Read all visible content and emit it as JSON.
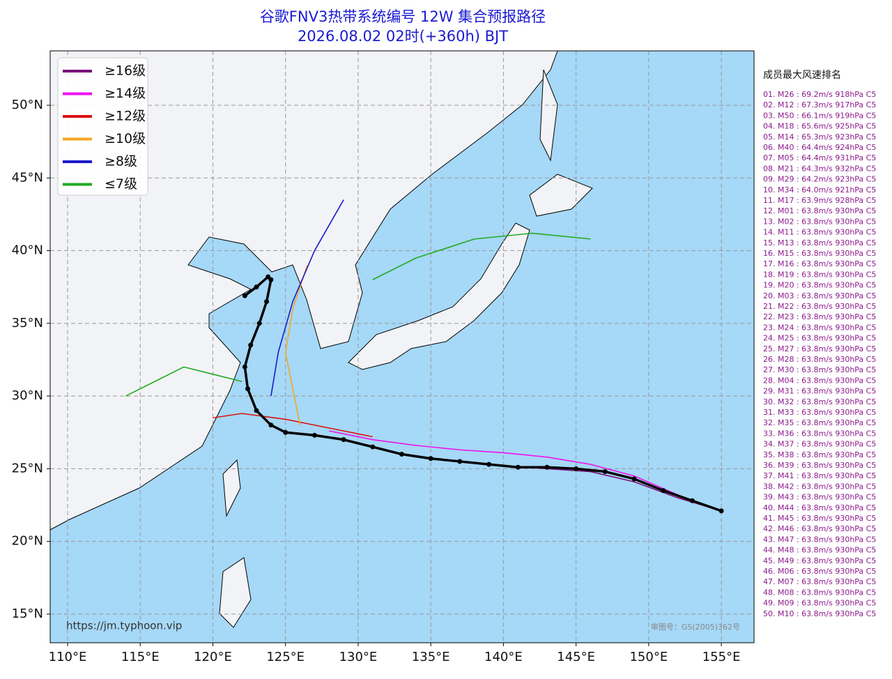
{
  "map": {
    "title": "谷歌FNV3热带系统编号 12W 集合预报路径",
    "subtitle": "2026.08.02 02时(+360h) BJT",
    "xlim": [
      108.8,
      157.25
    ],
    "ylim": [
      13.03,
      53.74
    ],
    "xticks": [
      {
        "value": 110,
        "label": "110°E"
      },
      {
        "value": 115,
        "label": "115°E"
      },
      {
        "value": 120,
        "label": "120°E"
      },
      {
        "value": 125,
        "label": "125°E"
      },
      {
        "value": 130,
        "label": "130°E"
      },
      {
        "value": 135,
        "label": "135°E"
      },
      {
        "value": 140,
        "label": "140°E"
      },
      {
        "value": 145,
        "label": "145°E"
      },
      {
        "value": 150,
        "label": "150°E"
      },
      {
        "value": 155,
        "label": "155°E"
      }
    ],
    "yticks": [
      {
        "value": 15,
        "label": "15°N"
      },
      {
        "value": 20,
        "label": "20°N"
      },
      {
        "value": 25,
        "label": "25°N"
      },
      {
        "value": 30,
        "label": "30°N"
      },
      {
        "value": 35,
        "label": "35°N"
      },
      {
        "value": 40,
        "label": "40°N"
      },
      {
        "value": 45,
        "label": "45°N"
      },
      {
        "value": 50,
        "label": "50°N"
      }
    ],
    "grid": true,
    "legend": [
      {
        "name": "≥16级",
        "color": "#7b0f7b"
      },
      {
        "name": "≥14级",
        "color": "#ee11ee"
      },
      {
        "name": "≥12级",
        "color": "#dd1111"
      },
      {
        "name": "≥10级",
        "color": "#f5a623"
      },
      {
        "name": "≥8级",
        "color": "#1a1acc"
      },
      {
        "name": "≤7级",
        "color": "#22aa22"
      }
    ],
    "tracks": [
      {
        "color": "#ee11ee",
        "lon": [
          155,
          152,
          149,
          146,
          143,
          140,
          137,
          134,
          131,
          128
        ],
        "lat": [
          22.1,
          23.2,
          24.5,
          25.3,
          25.8,
          26.1,
          26.3,
          26.6,
          27.0,
          27.6
        ]
      },
      {
        "color": "#7b0f7b",
        "lon": [
          155,
          152,
          149,
          146,
          143,
          140
        ],
        "lat": [
          22.1,
          23.0,
          24.1,
          24.8,
          25.0,
          25.2
        ]
      },
      {
        "color": "#dd1111",
        "lon": [
          131,
          128,
          125,
          122,
          120
        ],
        "lat": [
          27.2,
          27.8,
          28.4,
          28.8,
          28.5
        ]
      },
      {
        "color": "#f5a623",
        "lon": [
          126,
          125.5,
          125,
          125.5,
          126.5
        ],
        "lat": [
          28.0,
          30.5,
          33.0,
          36.0,
          39.0
        ]
      },
      {
        "color": "#1a1acc",
        "lon": [
          124,
          124.5,
          125.5,
          127,
          129
        ],
        "lat": [
          30.0,
          33.0,
          36.5,
          40.0,
          43.5
        ]
      },
      {
        "color": "#22aa22",
        "lon": [
          122,
          120,
          118,
          116,
          114
        ],
        "lat": [
          31.0,
          31.5,
          32.0,
          31.0,
          30.0
        ]
      },
      {
        "color": "#22aa22",
        "lon": [
          131,
          134,
          138,
          142,
          146
        ],
        "lat": [
          38.0,
          39.5,
          40.8,
          41.2,
          40.8
        ]
      }
    ],
    "mean_track": {
      "color": "#000000",
      "lon": [
        155,
        153,
        151,
        149,
        147,
        145,
        143,
        141,
        139,
        137,
        135,
        133,
        131,
        129,
        127,
        125,
        124,
        123,
        122.4,
        122.2,
        122.6,
        123.2,
        123.7,
        124,
        123.8,
        123,
        122.2
      ],
      "lat": [
        22.1,
        22.8,
        23.5,
        24.3,
        24.8,
        25.0,
        25.1,
        25.1,
        25.3,
        25.5,
        25.7,
        26.0,
        26.5,
        27.0,
        27.3,
        27.5,
        28.0,
        29.0,
        30.5,
        32.0,
        33.5,
        35.0,
        36.5,
        38.0,
        38.2,
        37.5,
        36.9
      ]
    },
    "ranking_title": "成员最大风速排名",
    "ranking": [
      "01. M26 : 69.2m/s 918hPa C5",
      "02. M12 : 67.3m/s 917hPa C5",
      "03. M50 : 66.1m/s 919hPa C5",
      "04. M18 : 65.6m/s 925hPa C5",
      "05. M14 : 65.3m/s 923hPa C5",
      "06. M40 : 64.4m/s 924hPa C5",
      "07. M05 : 64.4m/s 931hPa C5",
      "08. M21 : 64.3m/s 932hPa C5",
      "09. M29 : 64.2m/s 923hPa C5",
      "10. M34 : 64.0m/s 921hPa C5",
      "11. M17 : 63.9m/s 928hPa C5",
      "12. M01 : 63.8m/s 930hPa C5",
      "13. M02 : 63.8m/s 930hPa C5",
      "14. M11 : 63.8m/s 930hPa C5",
      "15. M13 : 63.8m/s 930hPa C5",
      "16. M15 : 63.8m/s 930hPa C5",
      "17. M16 : 63.8m/s 930hPa C5",
      "18. M19 : 63.8m/s 930hPa C5",
      "19. M20 : 63.8m/s 930hPa C5",
      "20. M03 : 63.8m/s 930hPa C5",
      "21. M22 : 63.8m/s 930hPa C5",
      "22. M23 : 63.8m/s 930hPa C5",
      "23. M24 : 63.8m/s 930hPa C5",
      "24. M25 : 63.8m/s 930hPa C5",
      "25. M27 : 63.8m/s 930hPa C5",
      "26. M28 : 63.8m/s 930hPa C5",
      "27. M30 : 63.8m/s 930hPa C5",
      "28. M04 : 63.8m/s 930hPa C5",
      "29. M31 : 63.8m/s 930hPa C5",
      "30. M32 : 63.8m/s 930hPa C5",
      "31. M33 : 63.8m/s 930hPa C5",
      "32. M35 : 63.8m/s 930hPa C5",
      "33. M36 : 63.8m/s 930hPa C5",
      "34. M37 : 63.8m/s 930hPa C5",
      "35. M38 : 63.8m/s 930hPa C5",
      "36. M39 : 63.8m/s 930hPa C5",
      "37. M41 : 63.8m/s 930hPa C5",
      "38. M42 : 63.8m/s 930hPa C5",
      "39. M43 : 63.8m/s 930hPa C5",
      "40. M44 : 63.8m/s 930hPa C5",
      "41. M45 : 63.8m/s 930hPa C5",
      "42. M46 : 63.8m/s 930hPa C5",
      "43. M47 : 63.8m/s 930hPa C5",
      "44. M48 : 63.8m/s 930hPa C5",
      "45. M49 : 63.8m/s 930hPa C5",
      "46. M06 : 63.8m/s 930hPa C5",
      "47. M07 : 63.8m/s 930hPa C5",
      "48. M08 : 63.8m/s 930hPa C5",
      "49. M09 : 63.8m/s 930hPa C5",
      "50. M10 : 63.8m/s 930hPa C5"
    ],
    "source": "https://jm.typhoon.vip",
    "approval": "审图号：GS(2005)362号"
  }
}
